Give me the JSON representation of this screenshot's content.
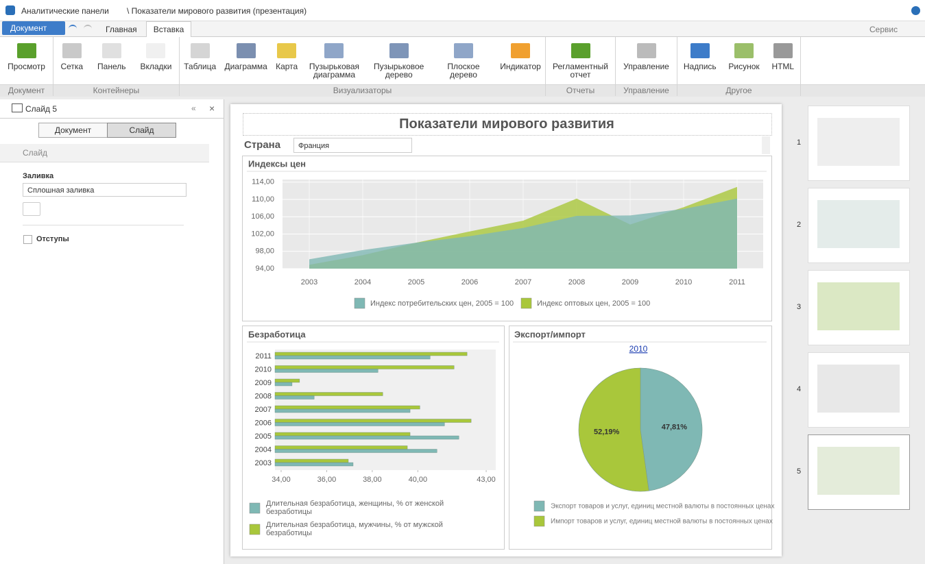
{
  "title_bar": {
    "app": "Аналитические панели",
    "document": "\\ Показатели мирового развития (презентация)"
  },
  "menu": {
    "document": "Документ",
    "tabs": [
      "Главная",
      "Вставка"
    ],
    "service": "Сервис"
  },
  "ribbon": {
    "groups": [
      {
        "name": "Документ",
        "buttons": [
          "Просмотр"
        ]
      },
      {
        "name": "Контейнеры",
        "buttons": [
          "Сетка",
          "Панель",
          "Вкладки"
        ]
      },
      {
        "name": "Визуализаторы",
        "buttons": [
          "Таблица",
          "Диаграмма",
          "Карта",
          "Пузырьковая диаграмма",
          "Пузырьковое дерево",
          "Плоское дерево",
          "Индикатор"
        ]
      },
      {
        "name": "Отчеты",
        "buttons": [
          "Регламентный отчет"
        ]
      },
      {
        "name": "Управление",
        "buttons": [
          "Управление"
        ]
      },
      {
        "name": "Другое",
        "buttons": [
          "Надпись",
          "Рисунок",
          "HTML"
        ]
      }
    ]
  },
  "left_panel": {
    "title": "Слайд 5",
    "tabs": [
      "Документ",
      "Слайд"
    ],
    "section": "Слайд",
    "fill_label": "Заливка",
    "fill_value": "Сплошная заливка",
    "margins": "Отступы"
  },
  "slide": {
    "title": "Показатели мирового развития",
    "country_label": "Страна",
    "country": "Франция"
  },
  "thumbnails": [
    1,
    2,
    3,
    4,
    5
  ],
  "chart_data": [
    {
      "type": "area",
      "title": "Индексы цен",
      "categories": [
        "2003",
        "2004",
        "2005",
        "2006",
        "2007",
        "2008",
        "2009",
        "2010",
        "2011"
      ],
      "series": [
        {
          "name": "Индекс потребительских цен, 2005 = 100",
          "color": "#7fb8b4",
          "values": [
            96.15,
            98.3,
            100,
            101.5,
            103.4,
            106.2,
            106.3,
            107.8,
            110.2
          ]
        },
        {
          "name": "Индекс оптовых цен, 2005 = 100",
          "color": "#a9c73b",
          "values": [
            94.9,
            97.1,
            100,
            102.6,
            105.1,
            110.2,
            104.2,
            108.2,
            112.9
          ]
        }
      ],
      "ylim": [
        94,
        114.6
      ],
      "yticks": [
        {
          "value": 94,
          "label": "94,00"
        },
        {
          "value": 98,
          "label": "98,00"
        },
        {
          "value": 102,
          "label": "102,00"
        },
        {
          "value": 106,
          "label": "106,00"
        },
        {
          "value": 110,
          "label": "110,00"
        },
        {
          "value": 114,
          "label": "114,00"
        }
      ],
      "grid": true
    },
    {
      "type": "hbar",
      "title": "Безработица",
      "categories": [
        "2011",
        "2010",
        "2009",
        "2008",
        "2007",
        "2006",
        "2005",
        "2004",
        "2003"
      ],
      "series": [
        {
          "name": "Длительная безработица, женщины, % от женской безработицы",
          "color": "#7fb8b4",
          "values": [
            40.54,
            38.25,
            34.48,
            35.45,
            39.66,
            41.17,
            41.8,
            40.84,
            37.16
          ]
        },
        {
          "name": "Длительная безработица, мужчины, % от мужской безработицы",
          "color": "#a9c73b",
          "values": [
            42.16,
            41.59,
            34.81,
            38.46,
            40.09,
            42.34,
            39.66,
            39.54,
            36.95
          ]
        }
      ],
      "xlim": [
        33.73,
        43.42
      ],
      "xticks": [
        {
          "value": 34,
          "label": "34,00"
        },
        {
          "value": 36,
          "label": "36,00"
        },
        {
          "value": 38,
          "label": "38,00"
        },
        {
          "value": 40,
          "label": "40,00"
        },
        {
          "value": 43,
          "label": "43,00"
        }
      ]
    },
    {
      "type": "pie",
      "title": "Экспорт/импорт",
      "subtitle": "2010",
      "categories": [
        "Экспорт товаров и услуг, единиц местной валюты в постоянных ценах",
        "Импорт товаров и услуг, единиц местной валюты в постоянных ценах"
      ],
      "values": [
        47.81,
        52.19
      ],
      "value_labels": [
        "47,81%",
        "52,19%"
      ],
      "colors": [
        "#7fb8b4",
        "#a9c73b"
      ]
    }
  ]
}
